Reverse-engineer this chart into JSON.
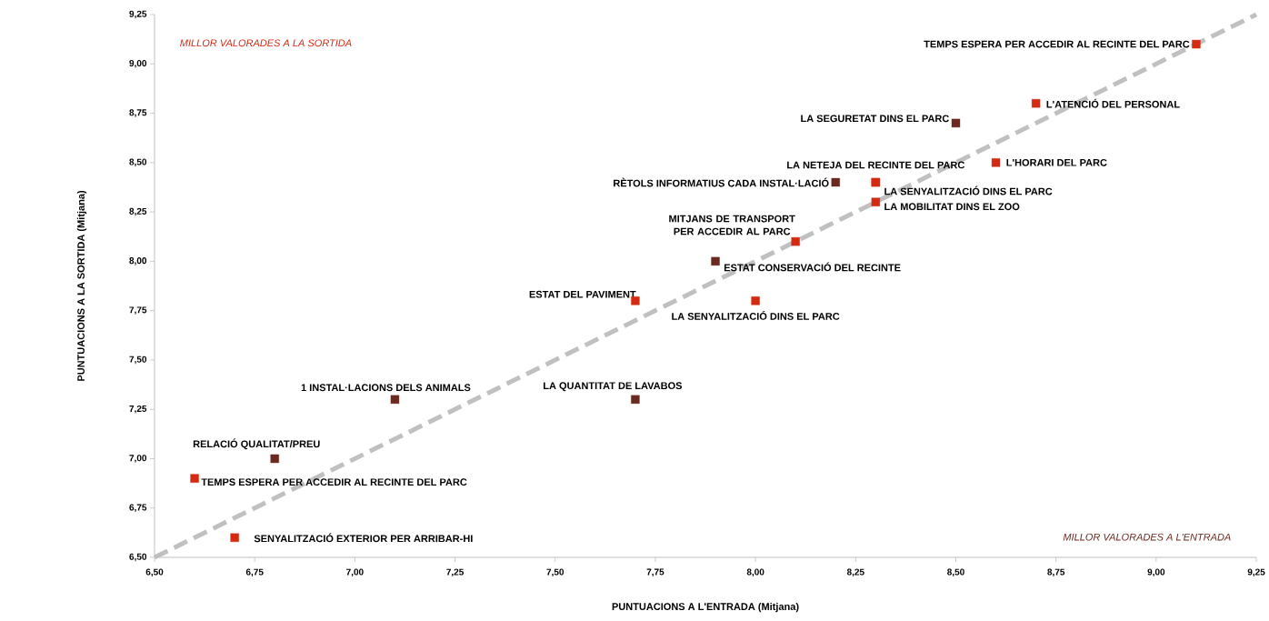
{
  "chart_data": {
    "type": "scatter",
    "xlabel": "PUNTUACIONS A L'ENTRADA (Mitjana)",
    "ylabel": "PUNTUACIONS A LA SORTIDA (Mitjana)",
    "xlim": [
      6.5,
      9.25
    ],
    "ylim": [
      6.5,
      9.25
    ],
    "xticks": [
      {
        "value": 6.5,
        "label": "6,50"
      },
      {
        "value": 6.75,
        "label": "6,75"
      },
      {
        "value": 7.0,
        "label": "7,00"
      },
      {
        "value": 7.25,
        "label": "7,25"
      },
      {
        "value": 7.5,
        "label": "7,50"
      },
      {
        "value": 7.75,
        "label": "7,75"
      },
      {
        "value": 8.0,
        "label": "8,00"
      },
      {
        "value": 8.25,
        "label": "8,25"
      },
      {
        "value": 8.5,
        "label": "8,50"
      },
      {
        "value": 8.75,
        "label": "8,75"
      },
      {
        "value": 9.0,
        "label": "9,00"
      },
      {
        "value": 9.25,
        "label": "9,25"
      }
    ],
    "yticks": [
      {
        "value": 6.5,
        "label": "6,50"
      },
      {
        "value": 6.75,
        "label": "6,75"
      },
      {
        "value": 7.0,
        "label": "7,00"
      },
      {
        "value": 7.25,
        "label": "7,25"
      },
      {
        "value": 7.5,
        "label": "7,50"
      },
      {
        "value": 7.75,
        "label": "7,75"
      },
      {
        "value": 8.0,
        "label": "8,00"
      },
      {
        "value": 8.25,
        "label": "8,25"
      },
      {
        "value": 8.5,
        "label": "8,50"
      },
      {
        "value": 8.75,
        "label": "8,75"
      },
      {
        "value": 9.0,
        "label": "9,00"
      },
      {
        "value": 9.25,
        "label": "9,25"
      }
    ],
    "marker": "square",
    "series": [
      {
        "type": "line",
        "color": "#c0c0c0",
        "line_style": "dashed",
        "marker": "none",
        "x": [
          6.5,
          9.25
        ],
        "values": [
          6.5,
          9.25
        ]
      },
      {
        "color": "#d42a12",
        "x": [
          9.1,
          8.7,
          8.3,
          8.6,
          8.3,
          8.3,
          8.1,
          7.7,
          8.0,
          6.6,
          6.7
        ],
        "values": [
          9.1,
          8.8,
          8.4,
          8.5,
          8.4,
          8.3,
          8.1,
          7.8,
          7.8,
          6.9,
          6.6
        ]
      },
      {
        "color": "#6b2a20",
        "x": [
          8.5,
          8.2,
          7.9,
          7.1,
          7.7,
          6.8
        ],
        "values": [
          8.7,
          8.4,
          8.0,
          7.3,
          7.3,
          7.0
        ]
      }
    ],
    "annotations": [
      "MILLOR VALORADES A LA SORTIDA",
      "MILLOR VALORADES A L'ENTRADA",
      {
        "text": "TEMPS ESPERA PER ACCEDIR AL RECINTE DEL PARC",
        "x": 9.1,
        "y": 9.1
      },
      {
        "text": "L'ATENCIÓ DEL PERSONAL",
        "x": 8.7,
        "y": 8.8
      },
      {
        "text": "LA SEGURETAT DINS EL PARC",
        "x": 8.5,
        "y": 8.7
      },
      {
        "text": "LA NETEJA DEL RECINTE DEL PARC",
        "x": 8.3,
        "y": 8.4
      },
      {
        "text": "L'HORARI DEL PARC",
        "x": 8.6,
        "y": 8.5
      },
      {
        "text": "RÈTOLS INFORMATIUS CADA INSTAL·LACIÓ",
        "x": 8.2,
        "y": 8.4
      },
      {
        "text": "LA SENYALITZACIÓ DINS EL PARC",
        "x": 8.3,
        "y": 8.4
      },
      {
        "text": "LA MOBILITAT DINS EL ZOO",
        "x": 8.3,
        "y": 8.3
      },
      {
        "text": "MITJANS DE TRANSPORT PER ACCEDIR AL PARC",
        "x": 8.1,
        "y": 8.1
      },
      {
        "text": "ESTAT CONSERVACIÓ DEL RECINTE",
        "x": 7.9,
        "y": 8.0
      },
      {
        "text": "ESTAT DEL PAVIMENT",
        "x": 7.7,
        "y": 7.8
      },
      {
        "text": "LA SENYALITZACIÓ DINS EL PARC",
        "x": 8.0,
        "y": 7.8
      },
      {
        "text": "1 INSTAL·LACIONS DELS ANIMALS",
        "x": 7.1,
        "y": 7.3
      },
      {
        "text": "LA QUANTITAT DE LAVABOS",
        "x": 7.7,
        "y": 7.3
      },
      {
        "text": "RELACIÓ QUALITAT/PREU",
        "x": 6.8,
        "y": 7.0
      },
      {
        "text": "TEMPS ESPERA PER ACCEDIR AL RECINTE DEL PARC",
        "x": 6.6,
        "y": 6.9
      },
      {
        "text": "SENYALITZACIÓ EXTERIOR PER ARRIBAR-HI",
        "x": 6.7,
        "y": 6.6
      }
    ]
  }
}
